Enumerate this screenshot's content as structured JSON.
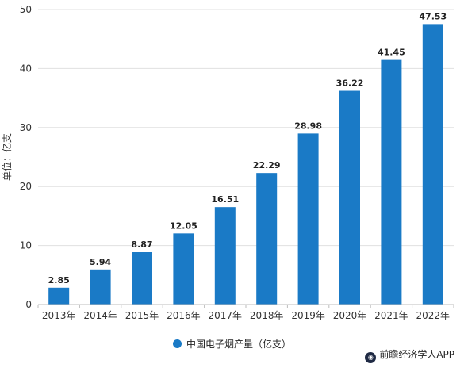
{
  "chart_data": {
    "type": "bar",
    "categories": [
      "2013年",
      "2014年",
      "2015年",
      "2016年",
      "2017年",
      "2018年",
      "2019年",
      "2020年",
      "2021年",
      "2022年"
    ],
    "series": [
      {
        "name": "中国电子烟产量（亿支）",
        "values": [
          2.85,
          5.94,
          8.87,
          12.05,
          16.51,
          22.29,
          28.98,
          36.22,
          41.45,
          47.53
        ]
      }
    ],
    "ylabel": "单位：亿支",
    "ylim": [
      0,
      50
    ],
    "yticks": [
      0,
      10,
      20,
      30,
      40,
      50
    ],
    "grid": "horizontal",
    "legend_position": "bottom-center",
    "colors": {
      "bar": "#1a7ac6",
      "grid": "#e0e0e0",
      "axis": "#bdbdbd"
    }
  },
  "branding": {
    "text": "前瞻经济学人APP"
  }
}
